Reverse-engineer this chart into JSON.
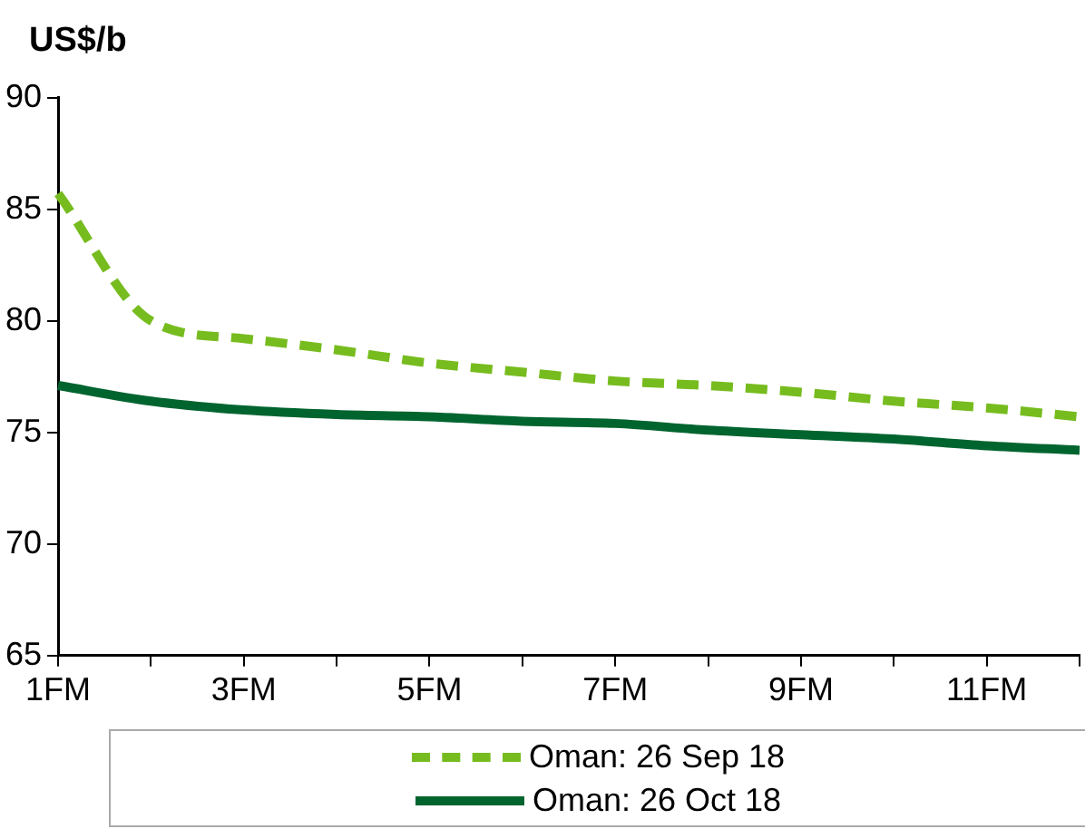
{
  "chart_data": {
    "type": "line",
    "ylabel": "US$/b",
    "categories": [
      "1FM",
      null,
      "3FM",
      null,
      "5FM",
      null,
      "7FM",
      null,
      "9FM",
      null,
      "11FM",
      null
    ],
    "series": [
      {
        "name": "Oman: 26 Sep 18",
        "color": "#77bc1f",
        "line_style": "dashed",
        "values": [
          85.7,
          80.0,
          79.2,
          78.7,
          78.1,
          77.7,
          77.3,
          77.1,
          76.8,
          76.4,
          76.1,
          75.7
        ]
      },
      {
        "name": "Oman: 26 Oct 18",
        "color": "#00642f",
        "line_style": "solid",
        "values": [
          77.1,
          76.4,
          76.0,
          75.8,
          75.7,
          75.5,
          75.4,
          75.1,
          74.9,
          74.7,
          74.4,
          74.2
        ]
      }
    ],
    "ylim": [
      65,
      90
    ],
    "yticks": [
      65,
      70,
      75,
      80,
      85,
      90
    ],
    "grid": false,
    "legend": "bottom",
    "marker": "none"
  }
}
